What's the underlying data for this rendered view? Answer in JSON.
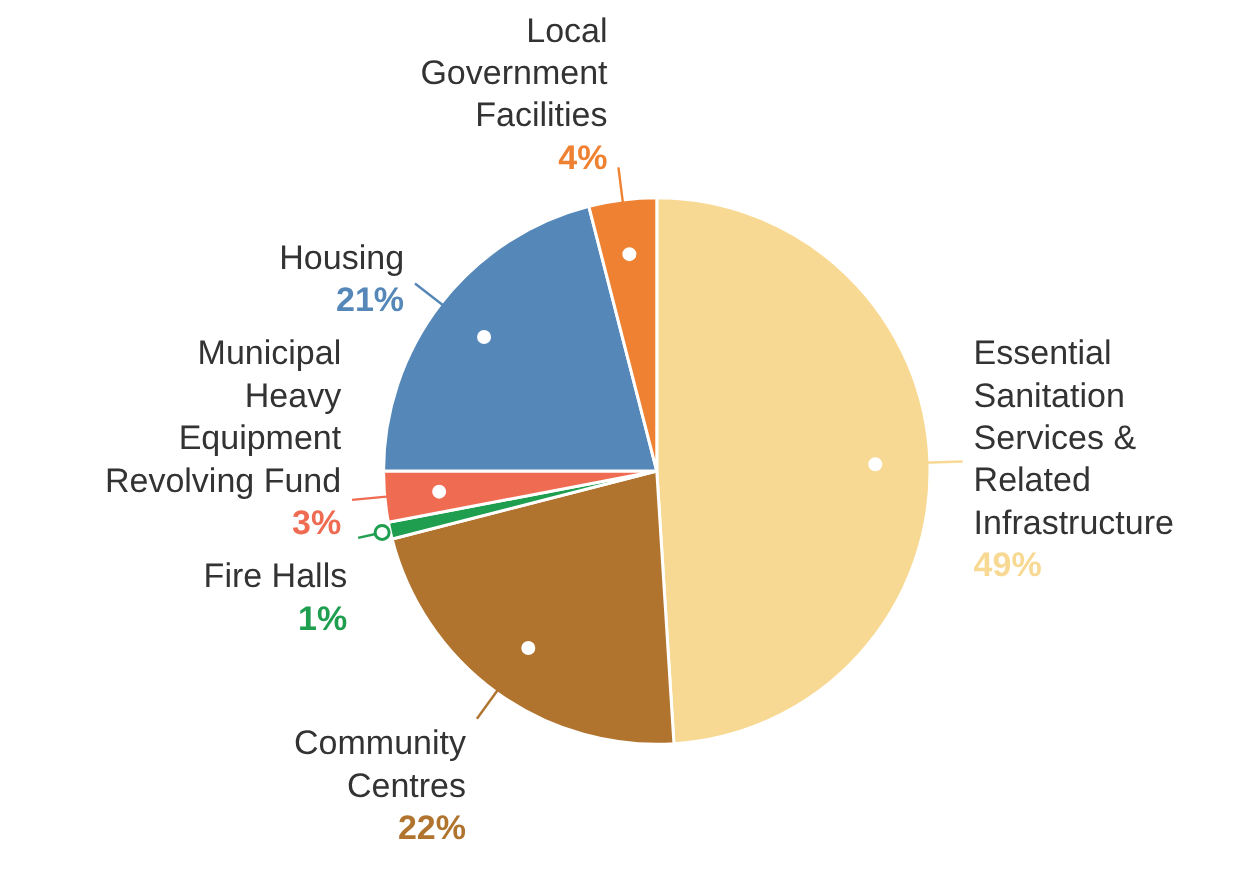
{
  "chart_data": {
    "type": "pie",
    "categories": [
      "Essential\nSanitation\nServices &\nRelated\nInfrastructure",
      "Community\nCentres",
      "Fire Halls",
      "Municipal\nHeavy\nEquipment\nRevolving Fund",
      "Housing",
      "Local\nGovernment\nFacilities"
    ],
    "values": [
      49,
      22,
      1,
      3,
      21,
      4
    ],
    "value_labels": [
      "49%",
      "22%",
      "1%",
      "3%",
      "21%",
      "4%"
    ],
    "colors": [
      "#f7d993",
      "#b0742e",
      "#1e9e4e",
      "#ef6b52",
      "#5588b8",
      "#ee8232"
    ]
  }
}
